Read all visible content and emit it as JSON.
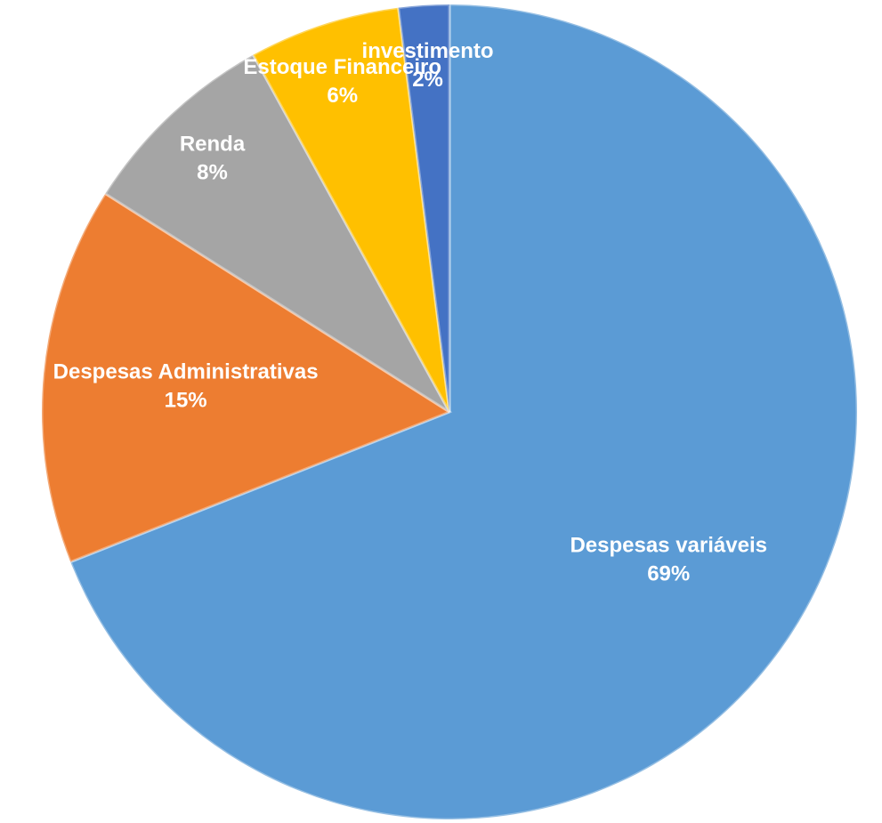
{
  "chart_data": {
    "type": "pie",
    "categories": [
      "Despesas variáveis",
      "Despesas Administrativas",
      "Renda",
      "Estoque Financeiro",
      "investimento"
    ],
    "values": [
      69,
      15,
      8,
      6,
      2
    ],
    "value_labels": [
      "69%",
      "15%",
      "8%",
      "6%",
      "2%"
    ],
    "colors": [
      "#5b9bd5",
      "#ed7d31",
      "#a5a5a5",
      "#ffc000",
      "#4472c4"
    ]
  }
}
